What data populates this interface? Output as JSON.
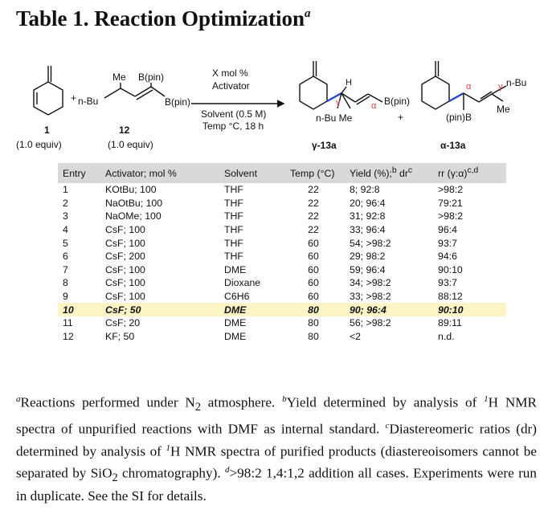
{
  "title": {
    "text": "Table 1. Reaction Optimization",
    "mark": "a"
  },
  "scheme": {
    "plus1": "+",
    "plus2": "+",
    "reagent_me": "Me",
    "reagent_bpin_top": "B(pin)",
    "reagent_nbu": "n-Bu",
    "reagent_bpin_bottom": "B(pin)",
    "arrow_above_1": "X mol %",
    "arrow_above_2": "Activator",
    "arrow_below_1": "Solvent (0.5 M)",
    "arrow_below_2": "Temp °C, 18 h",
    "sm1_num": "1",
    "sm1_equiv": "(1.0 equiv)",
    "sm2_num": "12",
    "sm2_equiv": "(1.0 equiv)",
    "prodA_h": "H",
    "prodA_gamma": "γ",
    "prodA_alpha": "α",
    "prodA_bpin": "B(pin)",
    "prodA_nbu_me": "n-Bu  Me",
    "prodA_label": "γ-13a",
    "prodB_alpha": "α",
    "prodB_gamma": "γ",
    "prodB_nbu": "n-Bu",
    "prodB_pinb": "(pin)B",
    "prodB_me": "Me",
    "prodB_label": "α-13a",
    "colors": {
      "gamma": "#e03b3b",
      "bond_blue": "#2446c8"
    }
  },
  "table": {
    "headers": [
      "Entry",
      "Activator; mol %",
      "Solvent",
      "Temp (°C)",
      "Yield (%);",
      "rr (γ:α)"
    ],
    "header_sups": {
      "yield_b": "b",
      "yield_dr": "dr",
      "yield_c": "c",
      "rr_cd": "c,d"
    },
    "rows": [
      [
        "1",
        "KOtBu; 100",
        "THF",
        "22",
        "8; 92:8",
        ">98:2"
      ],
      [
        "2",
        "NaOtBu; 100",
        "THF",
        "22",
        "20; 96:4",
        "79:21"
      ],
      [
        "3",
        "NaOMe; 100",
        "THF",
        "22",
        "31; 92:8",
        ">98:2"
      ],
      [
        "4",
        "CsF; 100",
        "THF",
        "22",
        "33; 96:4",
        "96:4"
      ],
      [
        "5",
        "CsF; 100",
        "THF",
        "60",
        "54; >98:2",
        "93:7"
      ],
      [
        "6",
        "CsF; 200",
        "THF",
        "60",
        "29; 98:2",
        "94:6"
      ],
      [
        "7",
        "CsF; 100",
        "DME",
        "60",
        "59; 96:4",
        "90:10"
      ],
      [
        "8",
        "CsF; 100",
        "Dioxane",
        "60",
        "34; >98:2",
        "93:7"
      ],
      [
        "9",
        "CsF; 100",
        "C6H6",
        "60",
        "33; >98:2",
        "88:12"
      ],
      [
        "10",
        "CsF; 50",
        "DME",
        "80",
        "90; 96:4",
        "90:10"
      ],
      [
        "11",
        "CsF; 20",
        "DME",
        "80",
        "56; >98:2",
        "89:11"
      ],
      [
        "12",
        "KF; 50",
        "DME",
        "80",
        "<2",
        "n.d."
      ]
    ],
    "highlight_row": "10",
    "highlight_color": "#fdf5c6",
    "header_color": "#d9d9d9"
  },
  "footnotes": {
    "a_mark": "a",
    "a_text": "Reactions performed under N",
    "a_sub": "2",
    "a_end": " atmosphere. ",
    "b_mark": "b",
    "b_text": "Yield determined by analysis of ",
    "b_sup1": "1",
    "b_text2": "H NMR spectra of unpurified reactions with DMF as internal standard. ",
    "c_mark": "c",
    "c_text": "Diastereomeric ratios (dr) determined by analysis of ",
    "c_sup1": "1",
    "c_text2": "H NMR spectra of purified products (diastereoisomers cannot be separated by SiO",
    "c_sub": "2",
    "c_text3": " chromatography). ",
    "d_mark": "d",
    "d_text": ">98:2 1,4:1,2 addition all cases. Experiments were run in duplicate.  See the SI for details."
  }
}
